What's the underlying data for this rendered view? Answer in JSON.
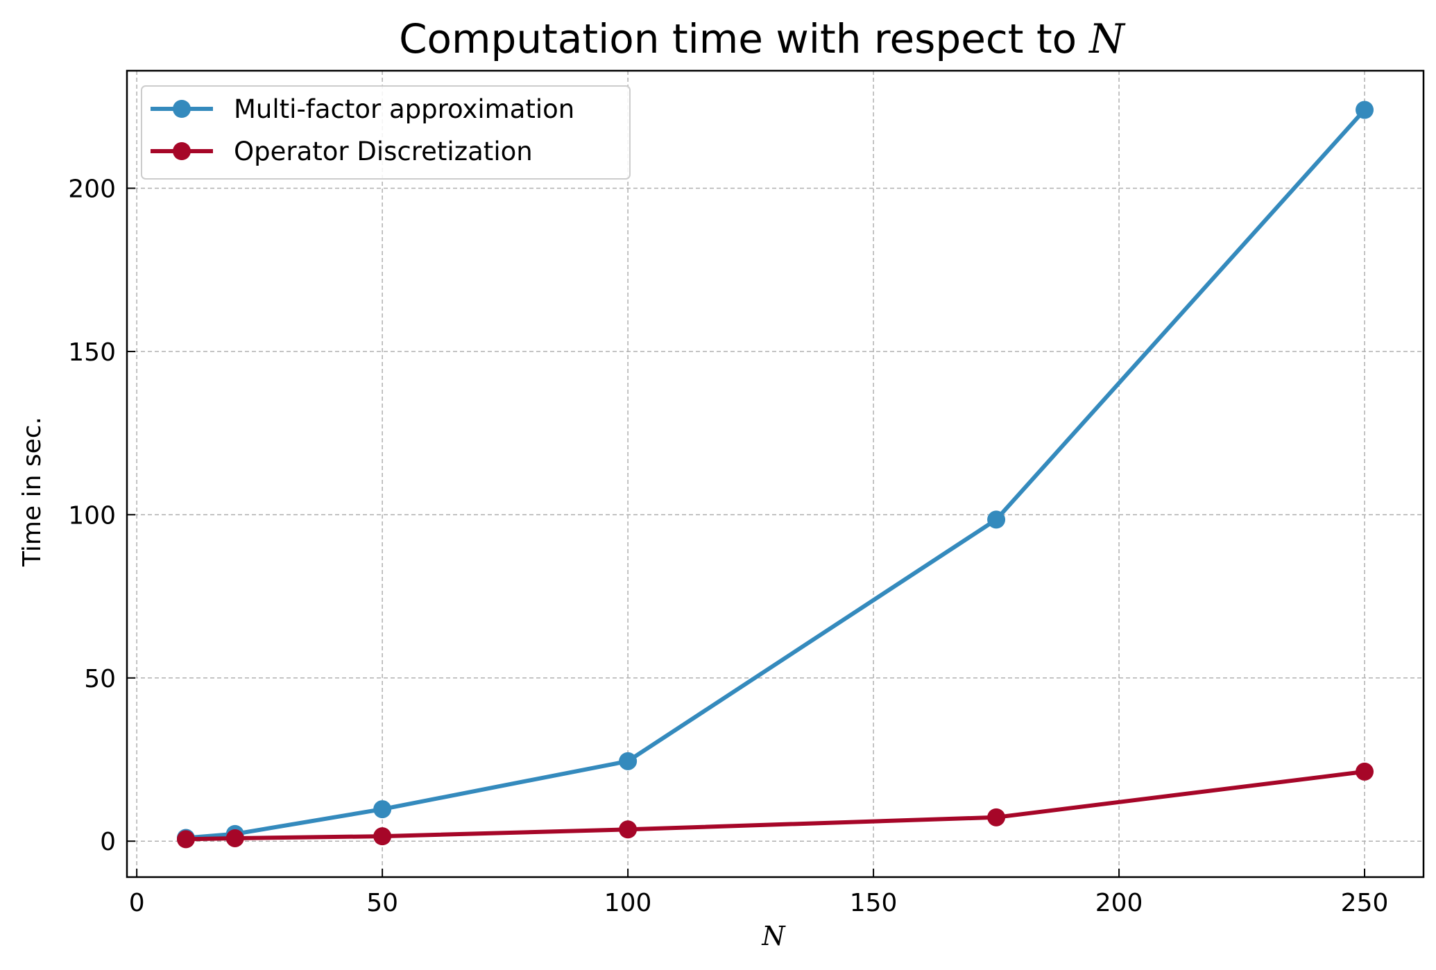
{
  "chart_data": {
    "type": "line",
    "title": "Computation time with respect to",
    "title_math": "N",
    "xlabel": "N",
    "ylabel": "Time in sec.",
    "xlim": [
      -2,
      262
    ],
    "ylim": [
      -11,
      236
    ],
    "xticks": [
      0,
      50,
      100,
      150,
      200,
      250
    ],
    "yticks": [
      0,
      50,
      100,
      150,
      200
    ],
    "grid": true,
    "legend_position": "top-left",
    "series": [
      {
        "name": "Multi-factor approximation",
        "color": "#348abd",
        "x": [
          10,
          20,
          50,
          100,
          175,
          250
        ],
        "y": [
          1,
          2.2,
          9.8,
          24.5,
          98.5,
          224
        ]
      },
      {
        "name": "Operator Discretization",
        "color": "#a60628",
        "x": [
          10,
          20,
          50,
          100,
          175,
          250
        ],
        "y": [
          0.6,
          0.9,
          1.5,
          3.6,
          7.3,
          21.3
        ]
      }
    ]
  }
}
